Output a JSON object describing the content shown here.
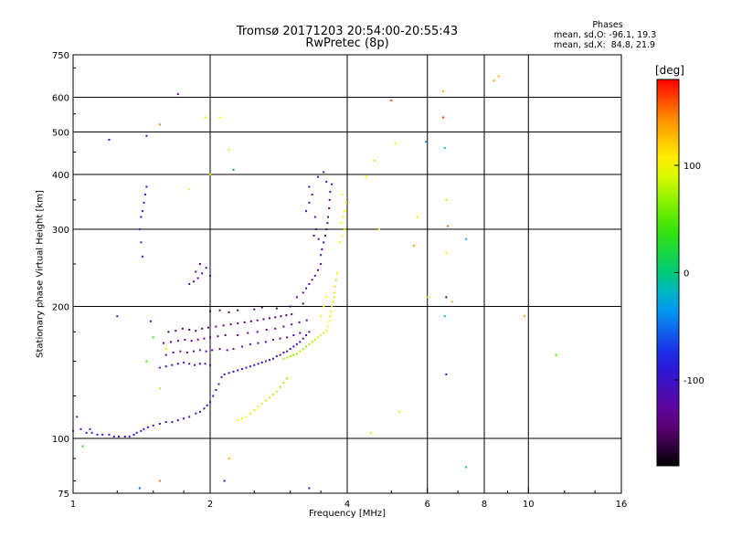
{
  "title": "Tromsø 20171203 20:54:00-20:55:43",
  "subtitle": "RwPretec (8p)",
  "stats": {
    "header": "Phases",
    "line1": "mean, sd,O: -96.1, 19.3",
    "line2": "mean, sd,X:  84.8, 21.9"
  },
  "colorbar": {
    "unit": "[deg]",
    "range": [
      -180,
      180
    ],
    "ticks": [
      {
        "value": 100,
        "label": "100"
      },
      {
        "value": 0,
        "label": "0"
      },
      {
        "value": -100,
        "label": "-100"
      }
    ]
  },
  "chart_data": {
    "type": "scatter",
    "xlabel": "Frequency [MHz]",
    "ylabel": "Stationary phase Virtual Height [km]",
    "xscale": "log2",
    "yscale": "log",
    "xlim": [
      1,
      16
    ],
    "ylim": [
      75,
      750
    ],
    "xticks": [
      {
        "value": 1,
        "label": "1"
      },
      {
        "value": 2,
        "label": "2"
      },
      {
        "value": 4,
        "label": "4"
      },
      {
        "value": 6,
        "label": "6"
      },
      {
        "value": 8,
        "label": "8"
      },
      {
        "value": 10,
        "label": "10"
      },
      {
        "value": 16,
        "label": "16"
      }
    ],
    "yticks": [
      {
        "value": 75,
        "label": "75"
      },
      {
        "value": 100,
        "label": "100"
      },
      {
        "value": 200,
        "label": "200"
      },
      {
        "value": 300,
        "label": "300"
      },
      {
        "value": 400,
        "label": "400"
      },
      {
        "value": 500,
        "label": "500"
      },
      {
        "value": 600,
        "label": "600"
      },
      {
        "value": 750,
        "label": "750"
      }
    ],
    "vlines": [
      2,
      4,
      6,
      8,
      10
    ],
    "hlines": [
      100,
      200,
      300,
      400,
      500,
      600
    ],
    "point_format": "[frequency_MHz, virtual_height_km, phase_deg]",
    "points": [
      [
        1.0,
        104,
        -80
      ],
      [
        1.04,
        105,
        -90
      ],
      [
        1.07,
        103,
        -75
      ],
      [
        1.1,
        103,
        -85
      ],
      [
        1.13,
        102,
        -80
      ],
      [
        1.16,
        102,
        -90
      ],
      [
        1.2,
        102,
        -85
      ],
      [
        1.23,
        101,
        -95
      ],
      [
        1.26,
        101,
        -90
      ],
      [
        1.3,
        101,
        -100
      ],
      [
        1.33,
        101,
        -95
      ],
      [
        1.36,
        102,
        -90
      ],
      [
        1.38,
        103,
        -85
      ],
      [
        1.02,
        112,
        -80
      ],
      [
        1.09,
        105,
        -70
      ],
      [
        1.41,
        104,
        -95
      ],
      [
        1.43,
        105,
        -90
      ],
      [
        1.46,
        106,
        -95
      ],
      [
        1.5,
        107,
        -100
      ],
      [
        1.55,
        108,
        -105
      ],
      [
        1.6,
        109,
        -100
      ],
      [
        1.65,
        109,
        -110
      ],
      [
        1.7,
        110,
        -105
      ],
      [
        1.75,
        111,
        -100
      ],
      [
        1.8,
        112,
        -105
      ],
      [
        1.86,
        114,
        -100
      ],
      [
        1.9,
        115,
        -105
      ],
      [
        1.94,
        117,
        -95
      ],
      [
        1.97,
        119,
        -100
      ],
      [
        2.0,
        121,
        -105
      ],
      [
        2.03,
        125,
        -100
      ],
      [
        2.06,
        129,
        -95
      ],
      [
        2.09,
        133,
        -105
      ],
      [
        2.12,
        138,
        -100
      ],
      [
        2.15,
        140,
        -100
      ],
      [
        2.2,
        141,
        -105
      ],
      [
        2.25,
        142,
        -95
      ],
      [
        2.3,
        143,
        -100
      ],
      [
        2.35,
        144,
        -110
      ],
      [
        2.4,
        145,
        -100
      ],
      [
        2.45,
        146,
        -105
      ],
      [
        2.5,
        147,
        -95
      ],
      [
        2.55,
        148,
        -100
      ],
      [
        2.6,
        149,
        -90
      ],
      [
        2.65,
        150,
        -100
      ],
      [
        2.7,
        151,
        -105
      ],
      [
        2.75,
        152,
        -95
      ],
      [
        2.8,
        154,
        -100
      ],
      [
        2.85,
        155,
        -110
      ],
      [
        2.9,
        157,
        -100
      ],
      [
        2.95,
        158,
        -95
      ],
      [
        3.0,
        160,
        -100
      ],
      [
        3.05,
        162,
        -105
      ],
      [
        3.1,
        164,
        -95
      ],
      [
        3.15,
        166,
        -100
      ],
      [
        3.2,
        169,
        -110
      ],
      [
        3.25,
        172,
        -100
      ],
      [
        3.3,
        175,
        -105
      ],
      [
        1.55,
        145,
        -110
      ],
      [
        1.6,
        146,
        -105
      ],
      [
        1.65,
        147,
        -100
      ],
      [
        1.7,
        148,
        -110
      ],
      [
        1.75,
        149,
        -105
      ],
      [
        1.8,
        148,
        -115
      ],
      [
        1.85,
        147,
        -110
      ],
      [
        1.9,
        148,
        -105
      ],
      [
        1.95,
        148,
        -110
      ],
      [
        2.0,
        147,
        -100
      ],
      [
        1.6,
        155,
        -120
      ],
      [
        1.66,
        157,
        -115
      ],
      [
        1.72,
        158,
        -120
      ],
      [
        1.78,
        157,
        -125
      ],
      [
        1.84,
        158,
        -120
      ],
      [
        1.9,
        159,
        -115
      ],
      [
        1.96,
        158,
        -120
      ],
      [
        2.02,
        159,
        -130
      ],
      [
        2.1,
        160,
        -125
      ],
      [
        2.18,
        159,
        -120
      ],
      [
        1.58,
        165,
        -140
      ],
      [
        1.64,
        166,
        -130
      ],
      [
        1.7,
        167,
        -135
      ],
      [
        1.76,
        168,
        -140
      ],
      [
        1.82,
        167,
        -130
      ],
      [
        1.88,
        168,
        -135
      ],
      [
        1.94,
        169,
        -140
      ],
      [
        2.0,
        170,
        -130
      ],
      [
        2.08,
        171,
        -135
      ],
      [
        2.16,
        172,
        -140
      ],
      [
        1.62,
        175,
        -150
      ],
      [
        1.68,
        176,
        -140
      ],
      [
        1.74,
        178,
        -145
      ],
      [
        1.8,
        177,
        -150
      ],
      [
        1.86,
        176,
        -140
      ],
      [
        1.92,
        178,
        -145
      ],
      [
        1.98,
        179,
        -150
      ],
      [
        2.06,
        180,
        -140
      ],
      [
        2.14,
        181,
        -145
      ],
      [
        2.22,
        182,
        -150
      ],
      [
        2.3,
        183,
        -140
      ],
      [
        2.38,
        184,
        -145
      ],
      [
        2.46,
        185,
        -150
      ],
      [
        2.54,
        186,
        -140
      ],
      [
        2.62,
        187,
        -145
      ],
      [
        2.7,
        188,
        -150
      ],
      [
        2.78,
        189,
        -140
      ],
      [
        2.86,
        190,
        -145
      ],
      [
        2.94,
        191,
        -150
      ],
      [
        3.02,
        192,
        -140
      ],
      [
        2.25,
        160,
        -120
      ],
      [
        2.35,
        162,
        -115
      ],
      [
        2.45,
        164,
        -125
      ],
      [
        2.55,
        165,
        -120
      ],
      [
        2.65,
        166,
        -130
      ],
      [
        2.75,
        168,
        -125
      ],
      [
        2.85,
        169,
        -120
      ],
      [
        2.95,
        170,
        -130
      ],
      [
        3.05,
        172,
        -125
      ],
      [
        3.15,
        174,
        -120
      ],
      [
        2.3,
        172,
        -135
      ],
      [
        2.42,
        174,
        -140
      ],
      [
        2.54,
        175,
        -130
      ],
      [
        2.66,
        177,
        -135
      ],
      [
        2.78,
        178,
        -140
      ],
      [
        2.9,
        180,
        -130
      ],
      [
        3.02,
        182,
        -135
      ],
      [
        3.14,
        184,
        -140
      ],
      [
        3.26,
        186,
        -130
      ],
      [
        2.0,
        195,
        -150
      ],
      [
        2.1,
        196,
        -140
      ],
      [
        2.2,
        194,
        -145
      ],
      [
        2.3,
        196,
        -150
      ],
      [
        2.5,
        197,
        -140
      ],
      [
        2.6,
        199,
        -145
      ],
      [
        2.8,
        198,
        -150
      ],
      [
        3.0,
        200,
        -140
      ],
      [
        3.2,
        203,
        -145
      ],
      [
        3.1,
        210,
        -120
      ],
      [
        3.2,
        215,
        -115
      ],
      [
        3.25,
        220,
        -125
      ],
      [
        3.3,
        225,
        -120
      ],
      [
        3.35,
        230,
        -115
      ],
      [
        3.4,
        235,
        -120
      ],
      [
        3.45,
        242,
        -125
      ],
      [
        3.5,
        250,
        -120
      ],
      [
        3.5,
        262,
        -115
      ],
      [
        3.52,
        270,
        -120
      ],
      [
        3.55,
        280,
        -125
      ],
      [
        3.58,
        290,
        -120
      ],
      [
        3.6,
        300,
        -115
      ],
      [
        3.62,
        310,
        -120
      ],
      [
        3.63,
        320,
        -125
      ],
      [
        3.65,
        335,
        -120
      ],
      [
        3.66,
        350,
        -115
      ],
      [
        3.67,
        365,
        -120
      ],
      [
        3.6,
        385,
        -110
      ],
      [
        3.7,
        380,
        -110
      ],
      [
        3.45,
        395,
        -130
      ],
      [
        3.55,
        405,
        -125
      ],
      [
        3.38,
        290,
        -100
      ],
      [
        3.42,
        300,
        -105
      ],
      [
        3.46,
        285,
        -95
      ],
      [
        3.4,
        320,
        -110
      ],
      [
        3.25,
        330,
        -100
      ],
      [
        3.3,
        345,
        -105
      ],
      [
        3.35,
        360,
        -110
      ],
      [
        3.3,
        375,
        -100
      ],
      [
        1.8,
        225,
        -130
      ],
      [
        1.84,
        228,
        -135
      ],
      [
        1.88,
        232,
        -120
      ],
      [
        1.92,
        238,
        -125
      ],
      [
        1.86,
        240,
        -130
      ],
      [
        1.96,
        245,
        -140
      ],
      [
        2.0,
        235,
        -125
      ],
      [
        1.9,
        250,
        -135
      ],
      [
        1.41,
        320,
        -80
      ],
      [
        1.42,
        330,
        -85
      ],
      [
        1.43,
        345,
        -75
      ],
      [
        1.44,
        360,
        -80
      ],
      [
        1.45,
        375,
        -90
      ],
      [
        1.4,
        300,
        -70
      ],
      [
        1.41,
        280,
        -75
      ],
      [
        1.42,
        260,
        -80
      ],
      [
        2.3,
        110,
        100
      ],
      [
        2.35,
        111,
        95
      ],
      [
        2.4,
        112,
        100
      ],
      [
        2.45,
        114,
        90
      ],
      [
        2.5,
        116,
        95
      ],
      [
        2.55,
        118,
        85
      ],
      [
        2.6,
        120,
        90
      ],
      [
        2.65,
        122,
        80
      ],
      [
        2.7,
        124,
        85
      ],
      [
        2.75,
        126,
        75
      ],
      [
        2.8,
        128,
        80
      ],
      [
        2.85,
        131,
        70
      ],
      [
        2.9,
        134,
        75
      ],
      [
        2.95,
        137,
        65
      ],
      [
        2.9,
        152,
        70
      ],
      [
        2.95,
        153,
        75
      ],
      [
        3.0,
        154,
        70
      ],
      [
        3.05,
        155,
        65
      ],
      [
        3.1,
        156,
        70
      ],
      [
        3.15,
        158,
        75
      ],
      [
        3.2,
        160,
        70
      ],
      [
        3.25,
        162,
        65
      ],
      [
        3.3,
        164,
        75
      ],
      [
        3.35,
        166,
        70
      ],
      [
        3.4,
        168,
        80
      ],
      [
        3.45,
        170,
        85
      ],
      [
        3.5,
        172,
        90
      ],
      [
        3.55,
        174,
        95
      ],
      [
        3.6,
        176,
        100
      ],
      [
        3.62,
        180,
        105
      ],
      [
        3.65,
        185,
        100
      ],
      [
        3.67,
        190,
        110
      ],
      [
        3.68,
        195,
        105
      ],
      [
        3.7,
        200,
        110
      ],
      [
        3.72,
        205,
        115
      ],
      [
        3.74,
        210,
        110
      ],
      [
        3.75,
        215,
        120
      ],
      [
        3.76,
        222,
        115
      ],
      [
        3.78,
        230,
        120
      ],
      [
        3.8,
        238,
        110
      ],
      [
        3.6,
        210,
        100
      ],
      [
        3.55,
        200,
        105
      ],
      [
        3.5,
        190,
        95
      ],
      [
        3.85,
        280,
        95
      ],
      [
        3.9,
        290,
        100
      ],
      [
        3.95,
        300,
        90
      ],
      [
        3.88,
        310,
        105
      ],
      [
        3.92,
        320,
        95
      ],
      [
        3.95,
        330,
        100
      ],
      [
        3.98,
        345,
        90
      ],
      [
        3.9,
        360,
        95
      ],
      [
        1.2,
        480,
        -110
      ],
      [
        1.45,
        490,
        -90
      ],
      [
        1.55,
        520,
        150
      ],
      [
        1.7,
        610,
        -130
      ],
      [
        1.95,
        540,
        110
      ],
      [
        1.8,
        370,
        110
      ],
      [
        2.0,
        400,
        120
      ],
      [
        2.1,
        540,
        100
      ],
      [
        2.2,
        455,
        110
      ],
      [
        2.25,
        410,
        -40
      ],
      [
        4.4,
        395,
        100
      ],
      [
        4.6,
        430,
        120
      ],
      [
        5.0,
        590,
        160
      ],
      [
        4.7,
        300,
        100
      ],
      [
        5.1,
        470,
        90
      ],
      [
        5.6,
        275,
        140
      ],
      [
        5.7,
        320,
        110
      ],
      [
        5.95,
        475,
        -30
      ],
      [
        6.0,
        210,
        70
      ],
      [
        6.5,
        620,
        130
      ],
      [
        6.5,
        540,
        170
      ],
      [
        6.55,
        460,
        -20
      ],
      [
        6.6,
        350,
        120
      ],
      [
        6.65,
        305,
        150
      ],
      [
        6.6,
        265,
        90
      ],
      [
        6.6,
        210,
        -150
      ],
      [
        6.55,
        190,
        -20
      ],
      [
        6.8,
        205,
        130
      ],
      [
        6.6,
        140,
        -100
      ],
      [
        7.3,
        285,
        -30
      ],
      [
        8.4,
        655,
        140
      ],
      [
        8.6,
        670,
        130
      ],
      [
        9.8,
        190,
        140
      ],
      [
        11.5,
        155,
        50
      ],
      [
        5.2,
        115,
        90
      ],
      [
        4.5,
        103,
        90
      ],
      [
        7.3,
        86,
        -10
      ],
      [
        1.05,
        96,
        30
      ],
      [
        1.4,
        77,
        -60
      ],
      [
        1.55,
        80,
        150
      ],
      [
        2.15,
        80,
        -120
      ],
      [
        2.2,
        90,
        130
      ],
      [
        3.3,
        77,
        -100
      ],
      [
        1.48,
        185,
        -100
      ],
      [
        1.25,
        190,
        -110
      ],
      [
        1.5,
        170,
        30
      ],
      [
        1.6,
        160,
        100
      ],
      [
        1.55,
        130,
        80
      ],
      [
        1.45,
        150,
        40
      ]
    ]
  }
}
